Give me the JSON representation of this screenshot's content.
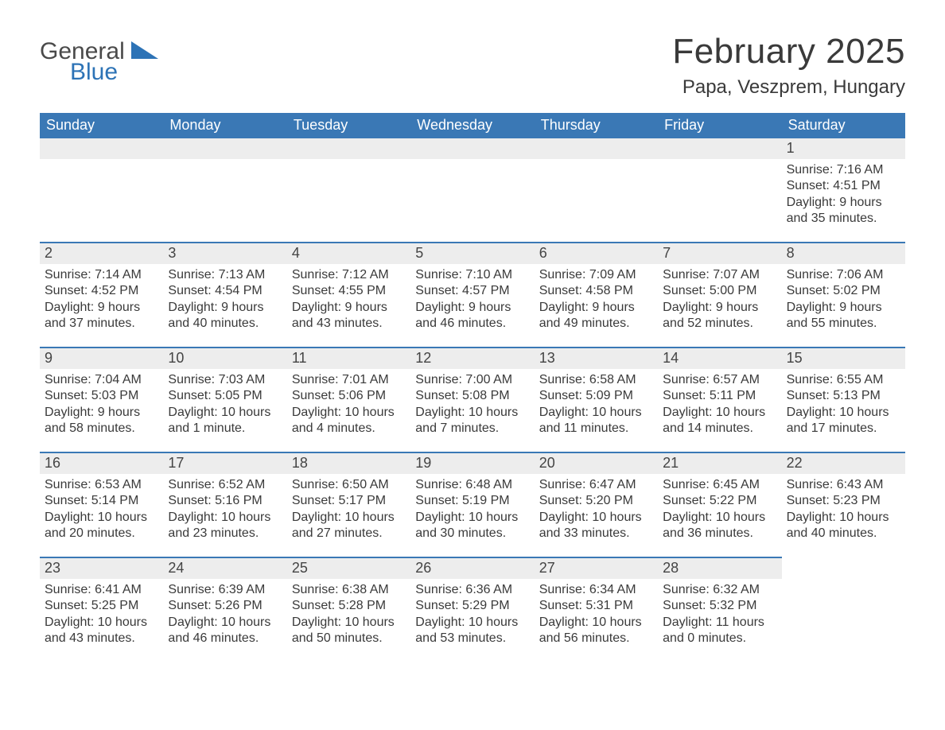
{
  "logo": {
    "general": "General",
    "blue": "Blue"
  },
  "title": "February 2025",
  "location": "Papa, Veszprem, Hungary",
  "colors": {
    "header_bg": "#3a78b5",
    "header_text": "#ffffff",
    "stripe_bg": "#ededed",
    "stripe_border": "#3a78b5",
    "body_text": "#3a3a3a",
    "logo_gray": "#4a4a4a",
    "logo_blue": "#2d73b6",
    "page_bg": "#ffffff"
  },
  "layout": {
    "columns": 7,
    "rows": 5,
    "first_day_column_index": 6,
    "days_in_month": 28
  },
  "dow": [
    "Sunday",
    "Monday",
    "Tuesday",
    "Wednesday",
    "Thursday",
    "Friday",
    "Saturday"
  ],
  "labels": {
    "sunrise": "Sunrise: ",
    "sunset": "Sunset: ",
    "daylight": "Daylight: "
  },
  "days": [
    {
      "n": 1,
      "sunrise": "7:16 AM",
      "sunset": "4:51 PM",
      "daylight": "9 hours and 35 minutes."
    },
    {
      "n": 2,
      "sunrise": "7:14 AM",
      "sunset": "4:52 PM",
      "daylight": "9 hours and 37 minutes."
    },
    {
      "n": 3,
      "sunrise": "7:13 AM",
      "sunset": "4:54 PM",
      "daylight": "9 hours and 40 minutes."
    },
    {
      "n": 4,
      "sunrise": "7:12 AM",
      "sunset": "4:55 PM",
      "daylight": "9 hours and 43 minutes."
    },
    {
      "n": 5,
      "sunrise": "7:10 AM",
      "sunset": "4:57 PM",
      "daylight": "9 hours and 46 minutes."
    },
    {
      "n": 6,
      "sunrise": "7:09 AM",
      "sunset": "4:58 PM",
      "daylight": "9 hours and 49 minutes."
    },
    {
      "n": 7,
      "sunrise": "7:07 AM",
      "sunset": "5:00 PM",
      "daylight": "9 hours and 52 minutes."
    },
    {
      "n": 8,
      "sunrise": "7:06 AM",
      "sunset": "5:02 PM",
      "daylight": "9 hours and 55 minutes."
    },
    {
      "n": 9,
      "sunrise": "7:04 AM",
      "sunset": "5:03 PM",
      "daylight": "9 hours and 58 minutes."
    },
    {
      "n": 10,
      "sunrise": "7:03 AM",
      "sunset": "5:05 PM",
      "daylight": "10 hours and 1 minute."
    },
    {
      "n": 11,
      "sunrise": "7:01 AM",
      "sunset": "5:06 PM",
      "daylight": "10 hours and 4 minutes."
    },
    {
      "n": 12,
      "sunrise": "7:00 AM",
      "sunset": "5:08 PM",
      "daylight": "10 hours and 7 minutes."
    },
    {
      "n": 13,
      "sunrise": "6:58 AM",
      "sunset": "5:09 PM",
      "daylight": "10 hours and 11 minutes."
    },
    {
      "n": 14,
      "sunrise": "6:57 AM",
      "sunset": "5:11 PM",
      "daylight": "10 hours and 14 minutes."
    },
    {
      "n": 15,
      "sunrise": "6:55 AM",
      "sunset": "5:13 PM",
      "daylight": "10 hours and 17 minutes."
    },
    {
      "n": 16,
      "sunrise": "6:53 AM",
      "sunset": "5:14 PM",
      "daylight": "10 hours and 20 minutes."
    },
    {
      "n": 17,
      "sunrise": "6:52 AM",
      "sunset": "5:16 PM",
      "daylight": "10 hours and 23 minutes."
    },
    {
      "n": 18,
      "sunrise": "6:50 AM",
      "sunset": "5:17 PM",
      "daylight": "10 hours and 27 minutes."
    },
    {
      "n": 19,
      "sunrise": "6:48 AM",
      "sunset": "5:19 PM",
      "daylight": "10 hours and 30 minutes."
    },
    {
      "n": 20,
      "sunrise": "6:47 AM",
      "sunset": "5:20 PM",
      "daylight": "10 hours and 33 minutes."
    },
    {
      "n": 21,
      "sunrise": "6:45 AM",
      "sunset": "5:22 PM",
      "daylight": "10 hours and 36 minutes."
    },
    {
      "n": 22,
      "sunrise": "6:43 AM",
      "sunset": "5:23 PM",
      "daylight": "10 hours and 40 minutes."
    },
    {
      "n": 23,
      "sunrise": "6:41 AM",
      "sunset": "5:25 PM",
      "daylight": "10 hours and 43 minutes."
    },
    {
      "n": 24,
      "sunrise": "6:39 AM",
      "sunset": "5:26 PM",
      "daylight": "10 hours and 46 minutes."
    },
    {
      "n": 25,
      "sunrise": "6:38 AM",
      "sunset": "5:28 PM",
      "daylight": "10 hours and 50 minutes."
    },
    {
      "n": 26,
      "sunrise": "6:36 AM",
      "sunset": "5:29 PM",
      "daylight": "10 hours and 53 minutes."
    },
    {
      "n": 27,
      "sunrise": "6:34 AM",
      "sunset": "5:31 PM",
      "daylight": "10 hours and 56 minutes."
    },
    {
      "n": 28,
      "sunrise": "6:32 AM",
      "sunset": "5:32 PM",
      "daylight": "11 hours and 0 minutes."
    }
  ]
}
